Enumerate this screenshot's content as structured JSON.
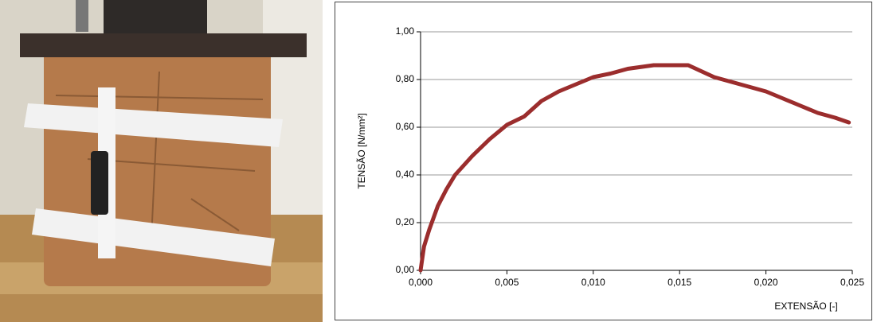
{
  "chart_data": {
    "type": "line",
    "x_label": "EXTENSÃO [-]",
    "y_label": "TENSÃO [N/mm²]",
    "x": [
      0,
      0.0002,
      0.0005,
      0.001,
      0.0015,
      0.002,
      0.003,
      0.004,
      0.005,
      0.006,
      0.007,
      0.008,
      0.009,
      0.01,
      0.011,
      0.012,
      0.013,
      0.0135,
      0.015,
      0.0155,
      0.017,
      0.018,
      0.019,
      0.02,
      0.021,
      0.022,
      0.023,
      0.024,
      0.0248
    ],
    "values": [
      0,
      0.1,
      0.17,
      0.27,
      0.34,
      0.4,
      0.48,
      0.55,
      0.61,
      0.645,
      0.71,
      0.75,
      0.78,
      0.81,
      0.825,
      0.845,
      0.855,
      0.86,
      0.86,
      0.86,
      0.81,
      0.79,
      0.77,
      0.75,
      0.72,
      0.69,
      0.66,
      0.64,
      0.62
    ],
    "color": "#9b2d2d",
    "xlim": [
      0,
      0.025
    ],
    "xticks": [
      {
        "value": 0,
        "label": "0,000"
      },
      {
        "value": 0.005,
        "label": "0,005"
      },
      {
        "value": 0.01,
        "label": "0,010"
      },
      {
        "value": 0.015,
        "label": "0,015"
      },
      {
        "value": 0.02,
        "label": "0,020"
      },
      {
        "value": 0.025,
        "label": "0,025"
      }
    ],
    "ylim": [
      0,
      1
    ],
    "yticks": [
      {
        "value": 0,
        "label": "0,00"
      },
      {
        "value": 0.2,
        "label": "0,20"
      },
      {
        "value": 0.4,
        "label": "0,40"
      },
      {
        "value": 0.6,
        "label": "0,60"
      },
      {
        "value": 0.8,
        "label": "0,80"
      },
      {
        "value": 1,
        "label": "1,00"
      }
    ],
    "grid": true
  }
}
